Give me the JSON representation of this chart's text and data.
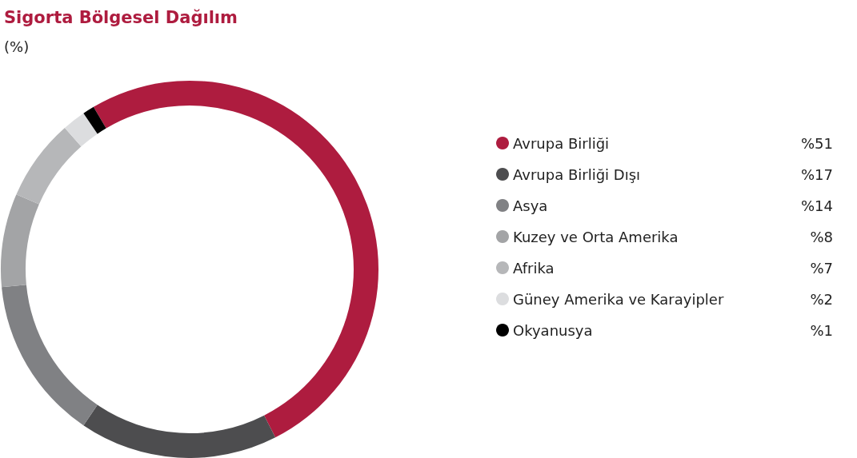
{
  "chart_data": {
    "type": "donut",
    "title": "Sigorta Bölgesel Dağılım",
    "subtitle": "(%)",
    "categories": [
      "Avrupa Birliği",
      "Avrupa Birliği Dışı",
      "Asya",
      "Kuzey ve Orta Amerika",
      "Afrika",
      "Güney Amerika ve Karayipler",
      "Okyanusya"
    ],
    "values": [
      51,
      17,
      14,
      8,
      7,
      2,
      1
    ],
    "value_labels": [
      "%51",
      "%17",
      "%14",
      "%8",
      "%7",
      "%2",
      "%1"
    ],
    "colors": [
      "#ae1c3f",
      "#4d4d4f",
      "#808184",
      "#a3a4a6",
      "#b6b7b9",
      "#dcdddf",
      "#000000"
    ],
    "legend": "right"
  }
}
